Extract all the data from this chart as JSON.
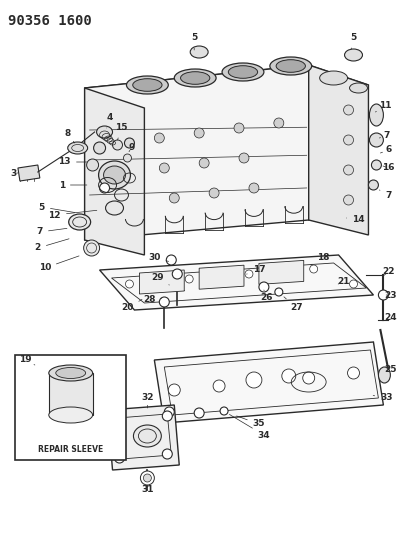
{
  "title": "90356 1600",
  "bg_color": "#ffffff",
  "line_color": "#2a2a2a",
  "label_fontsize": 6.5,
  "title_fontsize": 10,
  "repair_sleeve_text": "REPAIR SLEEVE"
}
